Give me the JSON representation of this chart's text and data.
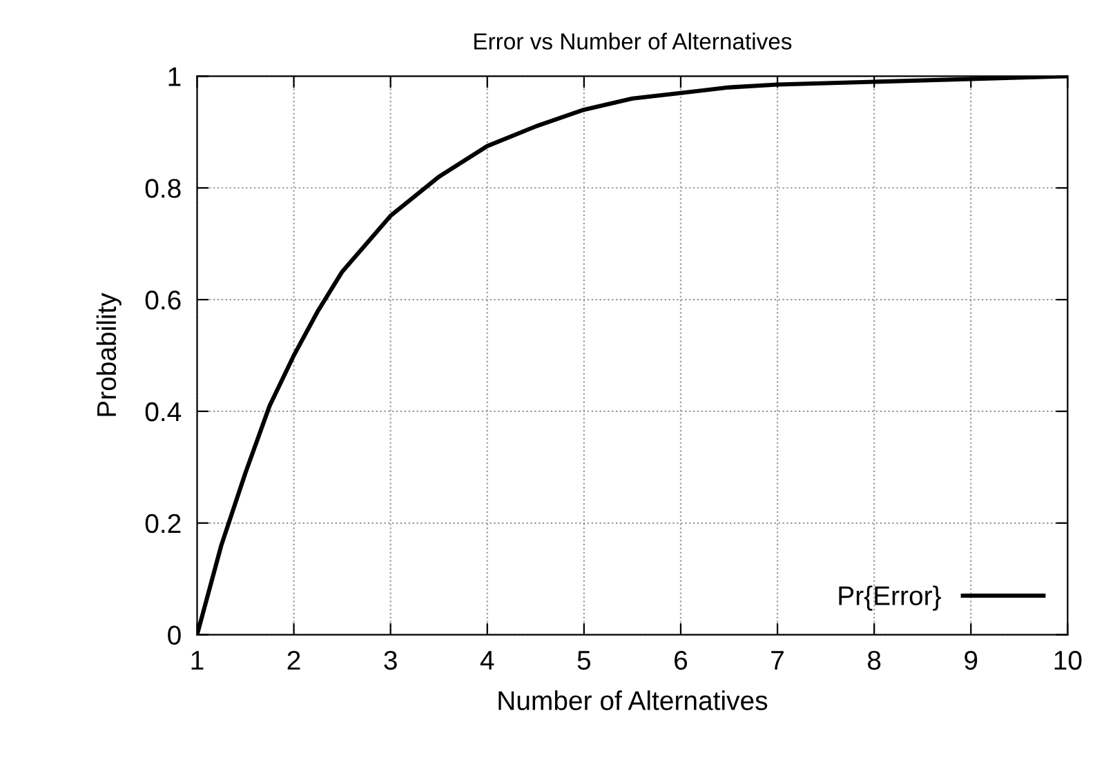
{
  "chart_data": {
    "type": "line",
    "title": "Error vs Number of Alternatives",
    "xlabel": "Number of Alternatives",
    "ylabel": "Probability",
    "x": [
      1,
      1.25,
      1.5,
      1.75,
      2,
      2.25,
      2.5,
      2.75,
      3,
      3.5,
      4,
      4.5,
      5,
      5.5,
      6,
      6.5,
      7,
      8,
      9,
      10
    ],
    "series": [
      {
        "name": "Pr{Error}",
        "color": "#000000",
        "values": [
          0,
          0.16,
          0.29,
          0.41,
          0.5,
          0.58,
          0.65,
          0.7,
          0.75,
          0.82,
          0.875,
          0.91,
          0.94,
          0.96,
          0.97,
          0.98,
          0.985,
          0.99,
          0.995,
          1.0
        ]
      }
    ],
    "xlim": [
      1,
      10
    ],
    "xticks": [
      1,
      2,
      3,
      4,
      5,
      6,
      7,
      8,
      9,
      10
    ],
    "ylim": [
      0,
      1
    ],
    "yticks": [
      0,
      0.2,
      0.4,
      0.6,
      0.8,
      1
    ],
    "grid": true,
    "legend": "bottom right",
    "line_style": "solid",
    "marker": "none"
  }
}
